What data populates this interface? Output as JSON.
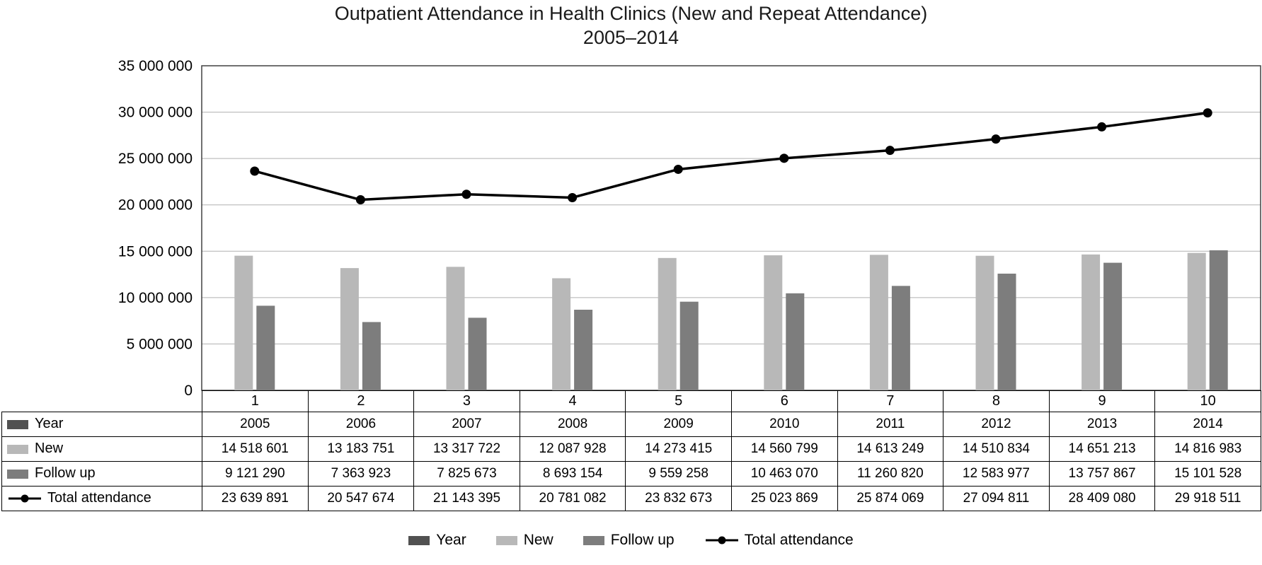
{
  "title": {
    "line1": "Outpatient Attendance in Health Clinics (New and Repeat Attendance)",
    "line2": "2005–2014"
  },
  "chart_data": {
    "type": "combo-bar-line",
    "categories": [
      "1",
      "2",
      "3",
      "4",
      "5",
      "6",
      "7",
      "8",
      "9",
      "10"
    ],
    "y_axis": {
      "min": 0,
      "max": 35000000,
      "step": 5000000,
      "tick_labels": [
        "0",
        "5 000 000",
        "10 000 000",
        "15 000 000",
        "20 000 000",
        "25 000 000",
        "30 000 000",
        "35 000 000"
      ]
    },
    "grid": true,
    "legend_position": "bottom",
    "series": [
      {
        "name": "Year",
        "type": "bar",
        "color": "#515151",
        "plotted_visible": false,
        "values": [
          2005,
          2006,
          2007,
          2008,
          2009,
          2010,
          2011,
          2012,
          2013,
          2014
        ]
      },
      {
        "name": "New",
        "type": "bar",
        "color": "#b8b8b8",
        "plotted_visible": true,
        "values": [
          14518601,
          13183751,
          13317722,
          12087928,
          14273415,
          14560799,
          14613249,
          14510834,
          14651213,
          14816983
        ]
      },
      {
        "name": "Follow up",
        "type": "bar",
        "color": "#7d7d7d",
        "plotted_visible": true,
        "values": [
          9121290,
          7363923,
          7825673,
          8693154,
          9559258,
          10463070,
          11260820,
          12583977,
          13757867,
          15101528
        ]
      },
      {
        "name": "Total attendance",
        "type": "line",
        "color": "#000000",
        "marker": "circle",
        "plotted_visible": true,
        "values": [
          23639891,
          20547674,
          21143395,
          20781082,
          23832673,
          25023869,
          25874069,
          27094811,
          28409080,
          29918511
        ]
      }
    ],
    "table": {
      "rows": [
        {
          "label": "Year",
          "cells": [
            "2005",
            "2006",
            "2007",
            "2008",
            "2009",
            "2010",
            "2011",
            "2012",
            "2013",
            "2014"
          ]
        },
        {
          "label": "New",
          "cells": [
            "14 518 601",
            "13 183 751",
            "13 317 722",
            "12 087 928",
            "14 273 415",
            "14 560 799",
            "14 613 249",
            "14 510 834",
            "14 651 213",
            "14 816 983"
          ]
        },
        {
          "label": "Follow up",
          "cells": [
            "9 121 290",
            "7 363 923",
            "7 825 673",
            "8 693 154",
            "9 559 258",
            "10 463 070",
            "11 260 820",
            "12 583 977",
            "13 757 867",
            "15 101 528"
          ]
        },
        {
          "label": "Total attendance",
          "cells": [
            "23 639 891",
            "20 547 674",
            "21 143 395",
            "20 781 082",
            "23 832 673",
            "25 023 869",
            "25 874 069",
            "27 094 811",
            "28 409 080",
            "29 918 511"
          ]
        }
      ]
    },
    "legend": [
      "Year",
      "New",
      "Follow up",
      "Total attendance"
    ],
    "colors": {
      "gridline": "#b0b0b0",
      "plot_border": "#404040",
      "text": "#000000"
    }
  }
}
